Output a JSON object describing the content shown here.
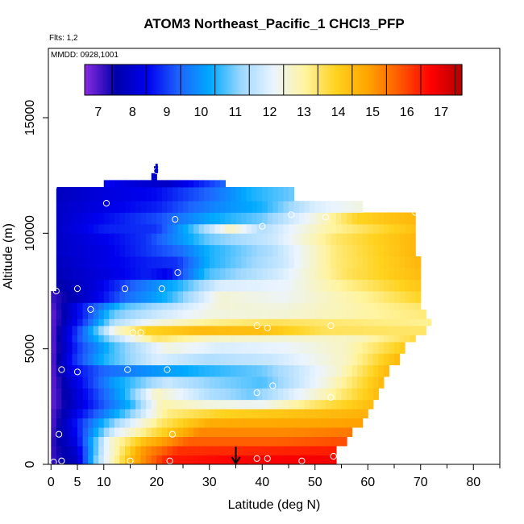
{
  "chart_data": {
    "type": "heatmap",
    "title": "ATOM3 Northeast_Pacific_1 CHCl3_PFP",
    "flights_label": "Flts: 1,2",
    "dates_label": "MMDD: 0928,1001",
    "xlabel": "Latitude (deg N)",
    "ylabel": "Altitude (m)",
    "xlim": [
      -0.5,
      85
    ],
    "ylim": [
      0,
      18000
    ],
    "xticks": [
      0,
      5,
      10,
      20,
      30,
      40,
      50,
      60,
      70,
      80
    ],
    "xtick_labels": [
      "0",
      "5",
      "10",
      "20",
      "30",
      "40",
      "50",
      "60",
      "70",
      "80"
    ],
    "yticks": [
      0,
      5000,
      10000,
      15000
    ],
    "ytick_labels": [
      "0",
      "5000",
      "10000",
      "15000"
    ],
    "colorbar": {
      "min": 6.7,
      "max": 17.7,
      "ticks": [
        7,
        8,
        9,
        10,
        11,
        12,
        13,
        14,
        15,
        16,
        17
      ],
      "tick_labels": [
        "7",
        "8",
        "9",
        "10",
        "11",
        "12",
        "13",
        "14",
        "15",
        "16",
        "17"
      ],
      "colors": [
        "#8a2be2",
        "#0000aa",
        "#0000ee",
        "#1e64ff",
        "#00aaff",
        "#9fd8ff",
        "#eaf4ff",
        "#fff4a0",
        "#ffd21e",
        "#ffa500",
        "#ff5a00",
        "#ff0000",
        "#b30000"
      ]
    },
    "layers": [
      {
        "z0": 0,
        "z1": 400,
        "x0": 0,
        "x1": 54,
        "profile": [
          [
            0,
            7.2
          ],
          [
            5,
            8.0
          ],
          [
            9,
            11.5
          ],
          [
            15,
            14.5
          ],
          [
            22,
            16.5
          ],
          [
            35,
            16.8
          ],
          [
            54,
            16.9
          ]
        ]
      },
      {
        "z0": 400,
        "z1": 800,
        "x0": 0,
        "x1": 54,
        "profile": [
          [
            0,
            7.2
          ],
          [
            5,
            8.2
          ],
          [
            10,
            12.0
          ],
          [
            17,
            15.0
          ],
          [
            24,
            16.3
          ],
          [
            40,
            16.4
          ],
          [
            54,
            16.5
          ]
        ]
      },
      {
        "z0": 800,
        "z1": 1200,
        "x0": 0,
        "x1": 56,
        "profile": [
          [
            0,
            7.2
          ],
          [
            5,
            8.5
          ],
          [
            11,
            12.5
          ],
          [
            18,
            14.5
          ],
          [
            26,
            15.8
          ],
          [
            42,
            15.8
          ],
          [
            56,
            16.0
          ]
        ]
      },
      {
        "z0": 1200,
        "z1": 1600,
        "x0": 0,
        "x1": 57,
        "profile": [
          [
            0,
            7.1
          ],
          [
            5,
            8.7
          ],
          [
            12,
            12.0
          ],
          [
            20,
            13.8
          ],
          [
            28,
            15.3
          ],
          [
            44,
            15.3
          ],
          [
            57,
            15.5
          ]
        ]
      },
      {
        "z0": 1600,
        "z1": 2000,
        "x0": 0,
        "x1": 59,
        "profile": [
          [
            0,
            7.0
          ],
          [
            5,
            8.8
          ],
          [
            13,
            11.5
          ],
          [
            21,
            13.5
          ],
          [
            30,
            14.8
          ],
          [
            46,
            14.9
          ],
          [
            59,
            15.0
          ]
        ]
      },
      {
        "z0": 2000,
        "z1": 2400,
        "x0": 0,
        "x1": 60,
        "profile": [
          [
            0,
            7.0
          ],
          [
            5,
            8.5
          ],
          [
            14,
            10.8
          ],
          [
            22,
            13.3
          ],
          [
            32,
            14.0
          ],
          [
            48,
            14.4
          ],
          [
            60,
            14.7
          ]
        ]
      },
      {
        "z0": 2400,
        "z1": 2800,
        "x0": 0,
        "x1": 61,
        "profile": [
          [
            0,
            6.9
          ],
          [
            5,
            8.2
          ],
          [
            15,
            10.5
          ],
          [
            21,
            13.0
          ],
          [
            30,
            12.5
          ],
          [
            40,
            12.3
          ],
          [
            50,
            13.5
          ],
          [
            61,
            14.5
          ]
        ]
      },
      {
        "z0": 2800,
        "z1": 3300,
        "x0": 0,
        "x1": 62,
        "profile": [
          [
            0,
            6.9
          ],
          [
            4,
            8.0
          ],
          [
            14,
            10.5
          ],
          [
            20,
            12.8
          ],
          [
            30,
            11.5
          ],
          [
            38,
            11.0
          ],
          [
            50,
            12.6
          ],
          [
            62,
            14.5
          ]
        ]
      },
      {
        "z0": 3300,
        "z1": 3800,
        "x0": 0,
        "x1": 63,
        "profile": [
          [
            0,
            6.9
          ],
          [
            4,
            8.2
          ],
          [
            12,
            10.2
          ],
          [
            22,
            11.8
          ],
          [
            30,
            11.2
          ],
          [
            40,
            10.8
          ],
          [
            52,
            12.5
          ],
          [
            63,
            14.6
          ]
        ]
      },
      {
        "z0": 3800,
        "z1": 4300,
        "x0": 0,
        "x1": 64,
        "profile": [
          [
            0,
            6.9
          ],
          [
            4,
            8.5
          ],
          [
            10,
            9.5
          ],
          [
            18,
            10.0
          ],
          [
            28,
            10.5
          ],
          [
            40,
            11.0
          ],
          [
            54,
            12.6
          ],
          [
            64,
            14.6
          ]
        ]
      },
      {
        "z0": 4300,
        "z1": 4800,
        "x0": 0,
        "x1": 66,
        "profile": [
          [
            0,
            6.9
          ],
          [
            4,
            8.8
          ],
          [
            10,
            10.5
          ],
          [
            20,
            12.0
          ],
          [
            30,
            11.5
          ],
          [
            42,
            11.8
          ],
          [
            56,
            12.8
          ],
          [
            66,
            14.6
          ]
        ]
      },
      {
        "z0": 4800,
        "z1": 5300,
        "x0": 0,
        "x1": 67,
        "profile": [
          [
            0,
            6.9
          ],
          [
            5,
            9.0
          ],
          [
            12,
            10.8
          ],
          [
            22,
            12.5
          ],
          [
            32,
            12.0
          ],
          [
            44,
            12.2
          ],
          [
            56,
            12.8
          ],
          [
            67,
            14.2
          ]
        ]
      },
      {
        "z0": 5300,
        "z1": 5600,
        "x0": 0,
        "x1": 69,
        "profile": [
          [
            0,
            6.9
          ],
          [
            5,
            9.2
          ],
          [
            12,
            11.5
          ],
          [
            20,
            13.5
          ],
          [
            30,
            12.8
          ],
          [
            44,
            12.6
          ],
          [
            58,
            12.8
          ],
          [
            69,
            13.8
          ]
        ]
      },
      {
        "z0": 5600,
        "z1": 6000,
        "x0": 0,
        "x1": 71,
        "profile": [
          [
            0,
            6.9
          ],
          [
            6,
            9.5
          ],
          [
            12,
            12.5
          ],
          [
            18,
            14.0
          ],
          [
            28,
            14.5
          ],
          [
            40,
            14.4
          ],
          [
            52,
            13.6
          ],
          [
            71,
            13.5
          ]
        ]
      },
      {
        "z0": 6000,
        "z1": 6300,
        "x0": 0,
        "x1": 72,
        "profile": [
          [
            0,
            6.9
          ],
          [
            6,
            9.0
          ],
          [
            12,
            11.5
          ],
          [
            20,
            12.5
          ],
          [
            30,
            13.2
          ],
          [
            42,
            13.6
          ],
          [
            56,
            13.4
          ],
          [
            72,
            13.2
          ]
        ]
      },
      {
        "z0": 6300,
        "z1": 6700,
        "x0": 0,
        "x1": 71,
        "profile": [
          [
            0,
            6.9
          ],
          [
            6,
            8.8
          ],
          [
            12,
            11.0
          ],
          [
            20,
            11.8
          ],
          [
            30,
            12.5
          ],
          [
            44,
            12.6
          ],
          [
            58,
            13.0
          ],
          [
            71,
            13.4
          ]
        ]
      },
      {
        "z0": 6700,
        "z1": 7000,
        "x0": 0,
        "x1": 70,
        "profile": [
          [
            0,
            7.0
          ],
          [
            6,
            8.8
          ],
          [
            14,
            10.8
          ],
          [
            22,
            11.5
          ],
          [
            32,
            12.6
          ],
          [
            44,
            12.5
          ],
          [
            58,
            13.0
          ],
          [
            70,
            13.5
          ]
        ]
      },
      {
        "z0": 7000,
        "z1": 7500,
        "x0": 0,
        "x1": 70,
        "profile": [
          [
            0,
            7.2
          ],
          [
            8,
            8.3
          ],
          [
            14,
            9.5
          ],
          [
            22,
            10.5
          ],
          [
            32,
            12.6
          ],
          [
            44,
            12.3
          ],
          [
            60,
            13.2
          ],
          [
            70,
            14.0
          ]
        ]
      },
      {
        "z0": 7500,
        "z1": 8000,
        "x0": 1,
        "x1": 70,
        "profile": [
          [
            1,
            7.6
          ],
          [
            8,
            8.2
          ],
          [
            16,
            9.5
          ],
          [
            24,
            10.5
          ],
          [
            32,
            12.0
          ],
          [
            44,
            12.2
          ],
          [
            58,
            13.4
          ],
          [
            70,
            14.3
          ]
        ]
      },
      {
        "z0": 8000,
        "z1": 8500,
        "x0": 1,
        "x1": 70,
        "profile": [
          [
            1,
            7.8
          ],
          [
            10,
            8.3
          ],
          [
            18,
            8.8
          ],
          [
            22,
            8.5
          ],
          [
            30,
            10.8
          ],
          [
            44,
            12.0
          ],
          [
            56,
            13.6
          ],
          [
            70,
            14.5
          ]
        ]
      },
      {
        "z0": 8500,
        "z1": 9000,
        "x0": 1,
        "x1": 70,
        "profile": [
          [
            1,
            7.9
          ],
          [
            10,
            8.4
          ],
          [
            18,
            8.8
          ],
          [
            24,
            9.0
          ],
          [
            30,
            10.5
          ],
          [
            44,
            11.8
          ],
          [
            54,
            13.4
          ],
          [
            70,
            14.6
          ]
        ]
      },
      {
        "z0": 9000,
        "z1": 9500,
        "x0": 1,
        "x1": 69,
        "profile": [
          [
            1,
            8.0
          ],
          [
            10,
            8.4
          ],
          [
            18,
            9.0
          ],
          [
            24,
            9.5
          ],
          [
            30,
            10.5
          ],
          [
            42,
            11.5
          ],
          [
            54,
            13.4
          ],
          [
            69,
            14.6
          ]
        ]
      },
      {
        "z0": 9500,
        "z1": 10000,
        "x0": 1,
        "x1": 69,
        "profile": [
          [
            1,
            8.0
          ],
          [
            10,
            8.5
          ],
          [
            18,
            9.0
          ],
          [
            24,
            10.0
          ],
          [
            30,
            11.0
          ],
          [
            42,
            11.8
          ],
          [
            54,
            13.5
          ],
          [
            69,
            14.6
          ]
        ]
      },
      {
        "z0": 10000,
        "z1": 10400,
        "x0": 1,
        "x1": 69,
        "profile": [
          [
            1,
            8.0
          ],
          [
            10,
            8.8
          ],
          [
            20,
            9.0
          ],
          [
            26,
            10.5
          ],
          [
            34,
            12.8
          ],
          [
            40,
            11.5
          ],
          [
            52,
            13.0
          ],
          [
            69,
            14.4
          ]
        ]
      },
      {
        "z0": 10400,
        "z1": 10900,
        "x0": 1,
        "x1": 69,
        "profile": [
          [
            1,
            8.0
          ],
          [
            10,
            8.6
          ],
          [
            20,
            9.2
          ],
          [
            30,
            10.3
          ],
          [
            40,
            11.0
          ],
          [
            50,
            12.5
          ],
          [
            58,
            14.0
          ],
          [
            69,
            14.6
          ]
        ]
      },
      {
        "z0": 10900,
        "z1": 11400,
        "x0": 1,
        "x1": 59,
        "profile": [
          [
            1,
            8.0
          ],
          [
            10,
            8.4
          ],
          [
            20,
            8.8
          ],
          [
            30,
            9.8
          ],
          [
            40,
            10.5
          ],
          [
            50,
            12.0
          ],
          [
            59,
            12.5
          ]
        ]
      },
      {
        "z0": 11400,
        "z1": 12000,
        "x0": 1,
        "x1": 46,
        "profile": [
          [
            1,
            7.9
          ],
          [
            10,
            8.3
          ],
          [
            20,
            8.6
          ],
          [
            30,
            9.5
          ],
          [
            38,
            10.5
          ],
          [
            46,
            11.0
          ]
        ]
      },
      {
        "z0": 12000,
        "z1": 12300,
        "x0": 10,
        "x1": 33,
        "profile": [
          [
            10,
            8.6
          ],
          [
            16,
            8.2
          ],
          [
            22,
            8.0
          ],
          [
            28,
            8.8
          ],
          [
            33,
            9.5
          ]
        ]
      },
      {
        "z0": 12300,
        "z1": 12600,
        "x0": 19,
        "x1": 20,
        "profile": [
          [
            19,
            8.0
          ],
          [
            20,
            8.0
          ]
        ]
      },
      {
        "z0": 12600,
        "z1": 12900,
        "x0": 19.5,
        "x1": 20.2,
        "profile": [
          [
            19.5,
            8.0
          ],
          [
            20.2,
            8.0
          ]
        ]
      }
    ],
    "samples": [
      {
        "lat": 0.5,
        "alt": 100
      },
      {
        "lat": 2,
        "alt": 150
      },
      {
        "lat": 1.5,
        "alt": 1300
      },
      {
        "lat": 15,
        "alt": 150
      },
      {
        "lat": 22.5,
        "alt": 150
      },
      {
        "lat": 23,
        "alt": 1300
      },
      {
        "lat": 39,
        "alt": 250
      },
      {
        "lat": 41,
        "alt": 250
      },
      {
        "lat": 47.5,
        "alt": 150
      },
      {
        "lat": 53.5,
        "alt": 350
      },
      {
        "lat": 53,
        "alt": 2900
      },
      {
        "lat": 2,
        "alt": 4100
      },
      {
        "lat": 5,
        "alt": 4000
      },
      {
        "lat": 14.5,
        "alt": 4100
      },
      {
        "lat": 22,
        "alt": 4100
      },
      {
        "lat": 39,
        "alt": 3100
      },
      {
        "lat": 42,
        "alt": 3400
      },
      {
        "lat": 15.5,
        "alt": 5700
      },
      {
        "lat": 17,
        "alt": 5700
      },
      {
        "lat": 39,
        "alt": 6000
      },
      {
        "lat": 41,
        "alt": 5900
      },
      {
        "lat": 53,
        "alt": 6000
      },
      {
        "lat": 7.5,
        "alt": 6700
      },
      {
        "lat": 1,
        "alt": 7500
      },
      {
        "lat": 5,
        "alt": 7600
      },
      {
        "lat": 14,
        "alt": 7600
      },
      {
        "lat": 21,
        "alt": 7600
      },
      {
        "lat": 24,
        "alt": 8300
      },
      {
        "lat": 23.5,
        "alt": 10600
      },
      {
        "lat": 40,
        "alt": 10300
      },
      {
        "lat": 45.5,
        "alt": 10800
      },
      {
        "lat": 52,
        "alt": 10700
      },
      {
        "lat": 69,
        "alt": 10900
      },
      {
        "lat": 0.5,
        "alt": 12000
      },
      {
        "lat": 10.5,
        "alt": 11300
      },
      {
        "lat": 10,
        "alt": 12500
      },
      {
        "lat": 20,
        "alt": 12700
      }
    ],
    "markers": [
      {
        "lat": 35,
        "alt": 700,
        "direction": "down"
      },
      {
        "lat": 20,
        "alt": 12800,
        "direction": "down"
      }
    ]
  }
}
